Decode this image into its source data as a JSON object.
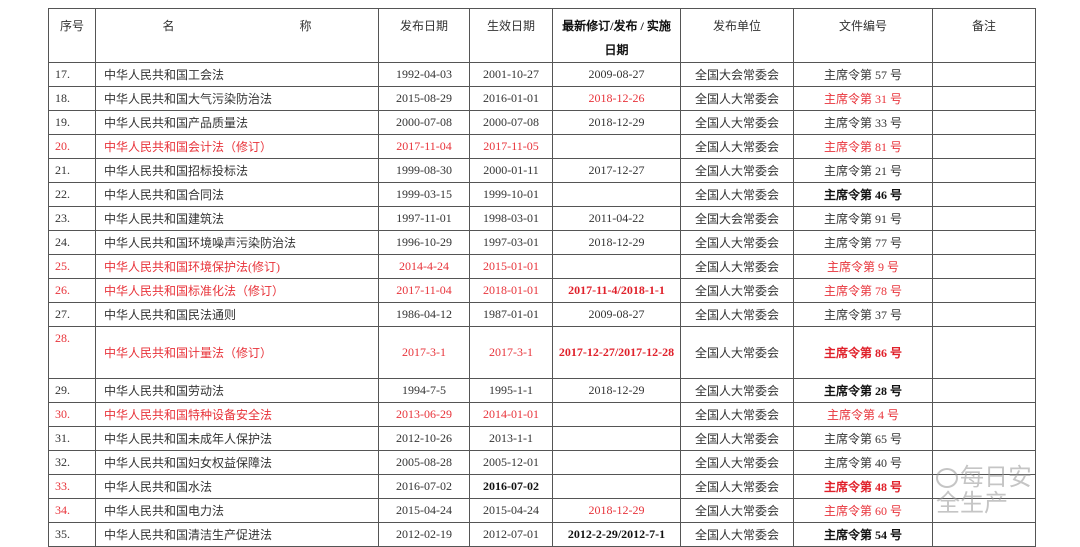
{
  "header": {
    "seq": "序号",
    "name_a": "名",
    "name_b": "称",
    "pub_date": "发布日期",
    "eff_date": "生效日期",
    "revision": "最新修订/发布 / 实施日期",
    "issuer": "发布单位",
    "doc_no": "文件编号",
    "remark": "备注"
  },
  "colors": {
    "red": "#e8333a",
    "text": "#333333",
    "border": "#555555"
  },
  "rows": [
    {
      "seq": {
        "t": "17."
      },
      "name": {
        "t": "中华人民共和国工会法"
      },
      "pub": {
        "t": "1992-04-03"
      },
      "eff": {
        "t": "2001-10-27"
      },
      "rev": {
        "t": "2009-08-27"
      },
      "issuer": {
        "t": "全国大会常委会"
      },
      "doc": {
        "t": "主席令第 57 号"
      },
      "remark": {
        "t": ""
      }
    },
    {
      "seq": {
        "t": "18."
      },
      "name": {
        "t": "中华人民共和国大气污染防治法"
      },
      "pub": {
        "t": "2015-08-29"
      },
      "eff": {
        "t": "2016-01-01"
      },
      "rev": {
        "t": "2018-12-26",
        "s": "red"
      },
      "issuer": {
        "t": "全国人大常委会"
      },
      "doc": {
        "t": "主席令第 31 号",
        "s": "red"
      },
      "remark": {
        "t": ""
      }
    },
    {
      "seq": {
        "t": "19."
      },
      "name": {
        "t": "中华人民共和国产品质量法"
      },
      "pub": {
        "t": "2000-07-08"
      },
      "eff": {
        "t": "2000-07-08"
      },
      "rev": {
        "t": "2018-12-29"
      },
      "issuer": {
        "t": "全国人大常委会"
      },
      "doc": {
        "t": "主席令第 33 号"
      },
      "remark": {
        "t": ""
      }
    },
    {
      "seq": {
        "t": "20.",
        "s": "red"
      },
      "name": {
        "t": "中华人民共和国会计法（修订）",
        "s": "red"
      },
      "pub": {
        "t": "2017-11-04",
        "s": "red"
      },
      "eff": {
        "t": "2017-11-05",
        "s": "red"
      },
      "rev": {
        "t": ""
      },
      "issuer": {
        "t": "全国人大常委会"
      },
      "doc": {
        "t": "主席令第 81 号",
        "s": "red"
      },
      "remark": {
        "t": ""
      }
    },
    {
      "seq": {
        "t": "21."
      },
      "name": {
        "t": "中华人民共和国招标投标法"
      },
      "pub": {
        "t": "1999-08-30"
      },
      "eff": {
        "t": "2000-01-11"
      },
      "rev": {
        "t": "2017-12-27"
      },
      "issuer": {
        "t": "全国人大常委会"
      },
      "doc": {
        "t": "主席令第 21 号"
      },
      "remark": {
        "t": ""
      }
    },
    {
      "seq": {
        "t": "22."
      },
      "name": {
        "t": "中华人民共和国合同法"
      },
      "pub": {
        "t": "1999-03-15"
      },
      "eff": {
        "t": "1999-10-01"
      },
      "rev": {
        "t": ""
      },
      "issuer": {
        "t": "全国人大常委会"
      },
      "doc": {
        "t": "主席令第 46 号",
        "s": "bold"
      },
      "remark": {
        "t": ""
      }
    },
    {
      "seq": {
        "t": "23."
      },
      "name": {
        "t": "中华人民共和国建筑法"
      },
      "pub": {
        "t": "1997-11-01"
      },
      "eff": {
        "t": "1998-03-01"
      },
      "rev": {
        "t": "2011-04-22"
      },
      "issuer": {
        "t": "全国大会常委会"
      },
      "doc": {
        "t": "主席令第 91 号"
      },
      "remark": {
        "t": ""
      }
    },
    {
      "seq": {
        "t": "24."
      },
      "name": {
        "t": "中华人民共和国环境噪声污染防治法"
      },
      "pub": {
        "t": "1996-10-29"
      },
      "eff": {
        "t": "1997-03-01"
      },
      "rev": {
        "t": "2018-12-29"
      },
      "issuer": {
        "t": "全国人大常委会"
      },
      "doc": {
        "t": "主席令第 77 号"
      },
      "remark": {
        "t": ""
      }
    },
    {
      "seq": {
        "t": "25.",
        "s": "red"
      },
      "name": {
        "t": "中华人民共和国环境保护法(修订)",
        "s": "red"
      },
      "pub": {
        "t": "2014-4-24",
        "s": "red"
      },
      "eff": {
        "t": "2015-01-01",
        "s": "red"
      },
      "rev": {
        "t": ""
      },
      "issuer": {
        "t": "全国人大常委会"
      },
      "doc": {
        "t": "主席令第 9 号",
        "s": "red"
      },
      "remark": {
        "t": ""
      }
    },
    {
      "seq": {
        "t": "26.",
        "s": "red"
      },
      "name": {
        "t": "中华人民共和国标准化法（修订）",
        "s": "red"
      },
      "pub": {
        "t": "2017-11-04",
        "s": "red"
      },
      "eff": {
        "t": "2018-01-01",
        "s": "red"
      },
      "rev": {
        "t": "2017-11-4/2018-1-1",
        "s": "red bold"
      },
      "issuer": {
        "t": "全国人大常委会"
      },
      "doc": {
        "t": "主席令第 78 号",
        "s": "red"
      },
      "remark": {
        "t": ""
      }
    },
    {
      "seq": {
        "t": "27."
      },
      "name": {
        "t": "中华人民共和国民法通则"
      },
      "pub": {
        "t": "1986-04-12"
      },
      "eff": {
        "t": "1987-01-01"
      },
      "rev": {
        "t": "2009-08-27"
      },
      "issuer": {
        "t": "全国人大常委会"
      },
      "doc": {
        "t": "主席令第 37 号"
      },
      "remark": {
        "t": ""
      }
    },
    {
      "tall": true,
      "seq": {
        "t": "28.",
        "s": "red"
      },
      "name": {
        "t": "中华人民共和国计量法（修订）",
        "s": "red"
      },
      "pub": {
        "t": "2017-3-1",
        "s": "red"
      },
      "eff": {
        "t": "2017-3-1",
        "s": "red"
      },
      "rev": {
        "t": "2017-12-27/2017-12-28",
        "s": "red bold"
      },
      "issuer": {
        "t": "全国人大常委会"
      },
      "doc": {
        "t": "主席令第 86 号",
        "s": "red bold"
      },
      "remark": {
        "t": ""
      }
    },
    {
      "seq": {
        "t": "29."
      },
      "name": {
        "t": "中华人民共和国劳动法"
      },
      "pub": {
        "t": "1994-7-5"
      },
      "eff": {
        "t": "1995-1-1"
      },
      "rev": {
        "t": "2018-12-29"
      },
      "issuer": {
        "t": "全国人大常委会"
      },
      "doc": {
        "t": "主席令第 28 号",
        "s": "bold"
      },
      "remark": {
        "t": ""
      }
    },
    {
      "seq": {
        "t": "30.",
        "s": "red"
      },
      "name": {
        "t": "中华人民共和国特种设备安全法",
        "s": "red"
      },
      "pub": {
        "t": "2013-06-29",
        "s": "red"
      },
      "eff": {
        "t": "2014-01-01",
        "s": "red"
      },
      "rev": {
        "t": ""
      },
      "issuer": {
        "t": "全国人大常委会"
      },
      "doc": {
        "t": "主席令第 4 号",
        "s": "red"
      },
      "remark": {
        "t": ""
      }
    },
    {
      "seq": {
        "t": "31."
      },
      "name": {
        "t": "中华人民共和国未成年人保护法"
      },
      "pub": {
        "t": "2012-10-26"
      },
      "eff": {
        "t": "2013-1-1"
      },
      "rev": {
        "t": ""
      },
      "issuer": {
        "t": "全国人大常委会"
      },
      "doc": {
        "t": "主席令第 65 号"
      },
      "remark": {
        "t": ""
      }
    },
    {
      "seq": {
        "t": "32."
      },
      "name": {
        "t": "中华人民共和国妇女权益保障法"
      },
      "pub": {
        "t": "2005-08-28"
      },
      "eff": {
        "t": "2005-12-01"
      },
      "rev": {
        "t": ""
      },
      "issuer": {
        "t": "全国人大常委会"
      },
      "doc": {
        "t": "主席令第 40 号"
      },
      "remark": {
        "t": ""
      }
    },
    {
      "seq": {
        "t": "33.",
        "s": "red"
      },
      "name": {
        "t": "中华人民共和国水法"
      },
      "pub": {
        "t": "2016-07-02"
      },
      "eff": {
        "t": "2016-07-02",
        "s": "bold"
      },
      "rev": {
        "t": ""
      },
      "issuer": {
        "t": "全国人大常委会"
      },
      "doc": {
        "t": "主席令第 48 号",
        "s": "red bold"
      },
      "remark": {
        "t": ""
      }
    },
    {
      "seq": {
        "t": "34.",
        "s": "red"
      },
      "name": {
        "t": "中华人民共和国电力法"
      },
      "pub": {
        "t": "2015-04-24"
      },
      "eff": {
        "t": "2015-04-24"
      },
      "rev": {
        "t": "2018-12-29",
        "s": "red"
      },
      "issuer": {
        "t": "全国人大常委会"
      },
      "doc": {
        "t": "主席令第 60 号",
        "s": "red"
      },
      "remark": {
        "t": ""
      }
    },
    {
      "seq": {
        "t": "35."
      },
      "name": {
        "t": "中华人民共和国清洁生产促进法"
      },
      "pub": {
        "t": "2012-02-19"
      },
      "eff": {
        "t": "2012-07-01"
      },
      "rev": {
        "t": "2012-2-29/2012-7-1",
        "s": "bold"
      },
      "issuer": {
        "t": "全国人大常委会"
      },
      "doc": {
        "t": "主席令第 54 号",
        "s": "bold"
      },
      "remark": {
        "t": ""
      }
    }
  ],
  "watermark": {
    "text": "每日安全生产",
    "icon": "wechat-icon"
  }
}
